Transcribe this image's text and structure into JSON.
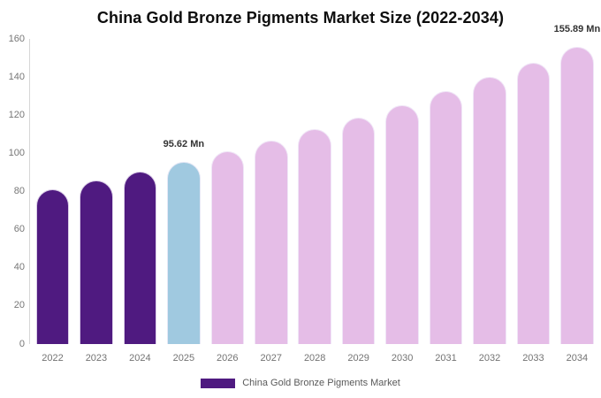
{
  "chart_data": {
    "type": "bar",
    "title": "China Gold Bronze Pigments Market Size (2022-2034)",
    "unit": "Mn",
    "categories": [
      "2022",
      "2023",
      "2024",
      "2025",
      "2026",
      "2027",
      "2028",
      "2029",
      "2030",
      "2031",
      "2032",
      "2033",
      "2034"
    ],
    "values": [
      81.25,
      85.78,
      90.57,
      95.62,
      100.96,
      106.59,
      112.54,
      118.82,
      125.45,
      132.45,
      139.84,
      147.65,
      155.89
    ],
    "colors": [
      "#4F1A80",
      "#4F1A80",
      "#4F1A80",
      "#A0C9E0",
      "#E5BDE7",
      "#E5BDE7",
      "#E5BDE7",
      "#E5BDE7",
      "#E5BDE7",
      "#E5BDE7",
      "#E5BDE7",
      "#E5BDE7",
      "#E5BDE7"
    ],
    "color_roles": {
      "historical": "#4F1A80",
      "base_year": "#A0C9E0",
      "forecast": "#E5BDE7"
    },
    "annotations": [
      {
        "category": "2025",
        "text": "95.62 Mn"
      },
      {
        "category": "2034",
        "text": "155.89 Mn"
      }
    ],
    "ylim": [
      0,
      160
    ],
    "yticks": [
      0,
      20,
      40,
      60,
      80,
      100,
      120,
      140,
      160
    ],
    "xlabel": "",
    "ylabel": "",
    "grid": false,
    "legend_position": "bottom",
    "legend": [
      {
        "label": "China Gold Bronze Pigments Market",
        "color": "#4F1A80"
      }
    ]
  }
}
